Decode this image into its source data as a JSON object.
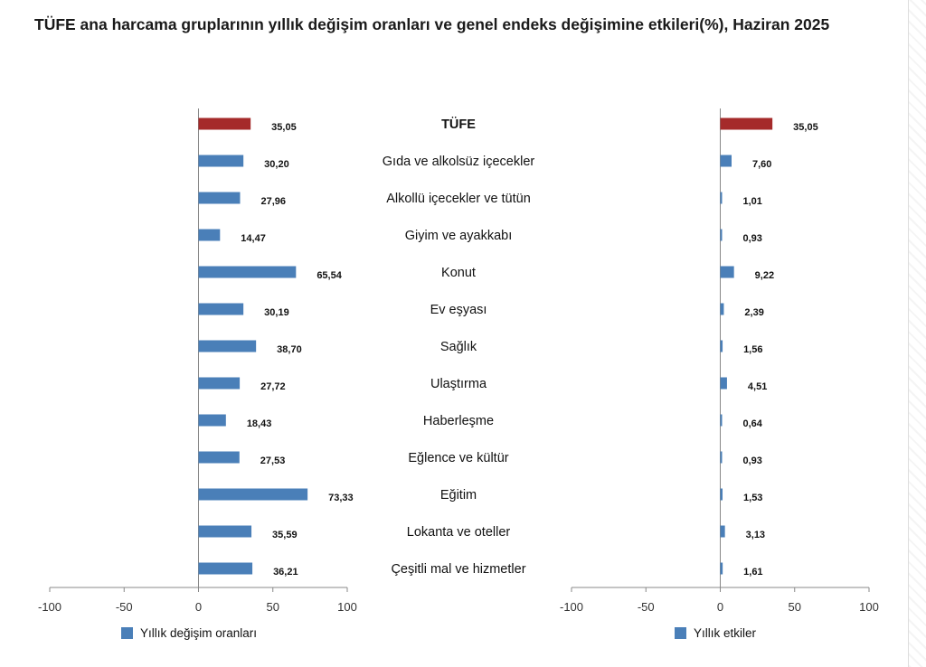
{
  "title": "TÜFE ana harcama gruplarının yıllık değişim oranları ve genel endeks değişimine etkileri(%), Haziran 2025",
  "colors": {
    "highlight": "#a52a2a",
    "bar": "#4a7fb8",
    "axis": "#888888"
  },
  "legend": {
    "left": "Yıllık değişim oranları",
    "right": "Yıllık etkiler"
  },
  "chart_data": [
    {
      "type": "bar",
      "orientation": "horizontal",
      "title": "",
      "xlim": [
        -100,
        100
      ],
      "xticks": [
        "-100",
        "-50",
        "0",
        "50",
        "100"
      ],
      "legend": "Yıllık değişim oranları",
      "categories": [
        "TÜFE",
        "Gıda ve alkolsüz içecekler",
        "Alkollü içecekler ve tütün",
        "Giyim ve ayakkabı",
        "Konut",
        "Ev eşyası",
        "Sağlık",
        "Ulaştırma",
        "Haberleşme",
        "Eğlence ve kültür",
        "Eğitim",
        "Lokanta ve oteller",
        "Çeşitli mal ve hizmetler"
      ],
      "values": [
        35.05,
        30.2,
        27.96,
        14.47,
        65.54,
        30.19,
        38.7,
        27.72,
        18.43,
        27.53,
        73.33,
        35.59,
        36.21
      ],
      "labels": [
        "35,05",
        "30,20",
        "27,96",
        "14,47",
        "65,54",
        "30,19",
        "38,70",
        "27,72",
        "18,43",
        "27,53",
        "73,33",
        "35,59",
        "36,21"
      ]
    },
    {
      "type": "bar",
      "orientation": "horizontal",
      "title": "",
      "xlim": [
        -100,
        100
      ],
      "xticks": [
        "-100",
        "-50",
        "0",
        "50",
        "100"
      ],
      "legend": "Yıllık etkiler",
      "categories": [
        "TÜFE",
        "Gıda ve alkolsüz içecekler",
        "Alkollü içecekler ve tütün",
        "Giyim ve ayakkabı",
        "Konut",
        "Ev eşyası",
        "Sağlık",
        "Ulaştırma",
        "Haberleşme",
        "Eğlence ve kültür",
        "Eğitim",
        "Lokanta ve oteller",
        "Çeşitli mal ve hizmetler"
      ],
      "values": [
        35.05,
        7.6,
        1.01,
        0.93,
        9.22,
        2.39,
        1.56,
        4.51,
        0.64,
        0.93,
        1.53,
        3.13,
        1.61
      ],
      "labels": [
        "35,05",
        "7,60",
        "1,01",
        "0,93",
        "9,22",
        "2,39",
        "1,56",
        "4,51",
        "0,64",
        "0,93",
        "1,53",
        "3,13",
        "1,61"
      ]
    }
  ]
}
